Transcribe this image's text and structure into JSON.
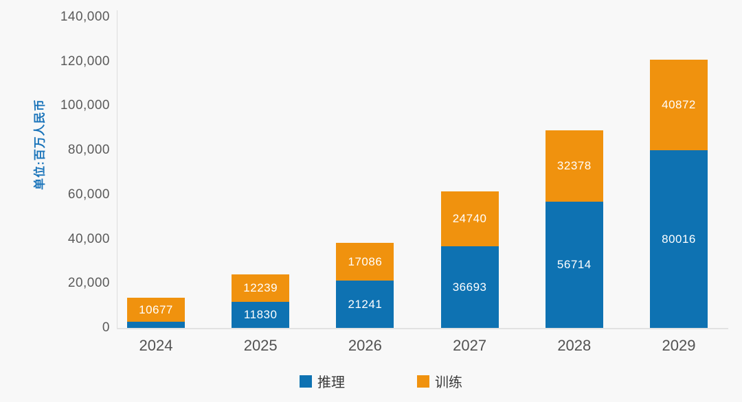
{
  "chart_data": {
    "type": "bar",
    "stacked": true,
    "title": "",
    "unit_label": "单位:百万人民币",
    "categories": [
      "2024",
      "2025",
      "2026",
      "2027",
      "2028",
      "2029"
    ],
    "series": [
      {
        "name": "推理",
        "key": "inference",
        "color": "#0e72b2",
        "values": [
          2800,
          11830,
          21241,
          36693,
          56714,
          80016
        ],
        "labels": [
          "",
          "11830",
          "21241",
          "36693",
          "56714",
          "80016"
        ]
      },
      {
        "name": "训练",
        "key": "training",
        "color": "#f0920e",
        "values": [
          10677,
          12239,
          17086,
          24740,
          32378,
          40872
        ],
        "labels": [
          "10677",
          "12239",
          "17086",
          "24740",
          "32378",
          "40872"
        ]
      }
    ],
    "totals": [
      13477,
      24069,
      38327,
      61433,
      89092,
      120888
    ],
    "ylim": [
      0,
      140000
    ],
    "ytick_interval": 20000,
    "yticks": [
      {
        "value": 0,
        "label": "0"
      },
      {
        "value": 20000,
        "label": "20,000"
      },
      {
        "value": 40000,
        "label": "40,000"
      },
      {
        "value": 60000,
        "label": "60,000"
      },
      {
        "value": 80000,
        "label": "80,000"
      },
      {
        "value": 100000,
        "label": "100,000"
      },
      {
        "value": 120000,
        "label": "120,000"
      },
      {
        "value": 140000,
        "label": "140,000"
      }
    ],
    "grid": false,
    "legend_position": "bottom"
  },
  "colors": {
    "background": "#f8f8f8",
    "axis_line": "#dcdcdc",
    "ytick_label": "#5a5a5a",
    "category_label": "#525252",
    "unit_label": "#1a74ba",
    "bar_label": "#ffffff",
    "legend_text": "#3a3a3a",
    "inference_blue": "#0e72b2",
    "training_orange": "#f0920e"
  }
}
